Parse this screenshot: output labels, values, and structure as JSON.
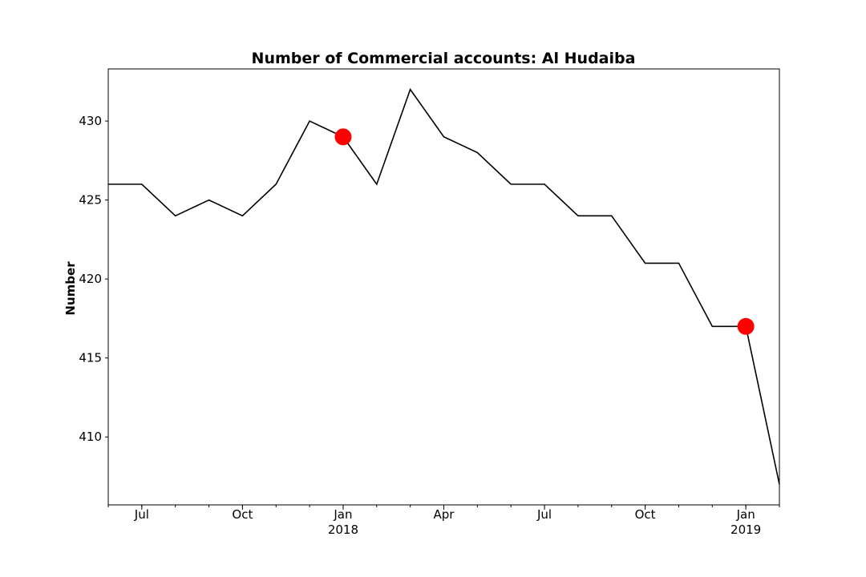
{
  "chart_data": {
    "type": "line",
    "title": "Number of Commercial accounts: Al Hudaiba",
    "xlabel": "",
    "ylabel": "Number",
    "x": [
      "2017-06",
      "2017-07",
      "2017-08",
      "2017-09",
      "2017-10",
      "2017-11",
      "2017-12",
      "2018-01",
      "2018-02",
      "2018-03",
      "2018-04",
      "2018-05",
      "2018-06",
      "2018-07",
      "2018-08",
      "2018-09",
      "2018-10",
      "2018-11",
      "2018-12",
      "2019-01",
      "2019-02"
    ],
    "series": [
      {
        "values": [
          426,
          426,
          424,
          425,
          424,
          426,
          430,
          429,
          426,
          432,
          429,
          428,
          426,
          426,
          424,
          424,
          421,
          421,
          417,
          417,
          407
        ],
        "color": "#000000"
      }
    ],
    "highlighted_points": [
      {
        "x": "2018-01",
        "y": 429
      },
      {
        "x": "2019-01",
        "y": 417
      }
    ],
    "highlight_color": "#ff0000",
    "xlim": [
      "2017-06",
      "2019-02"
    ],
    "ylim": [
      405.7,
      433.3
    ],
    "yticks": [
      410,
      415,
      420,
      425,
      430
    ],
    "xticks": [
      {
        "x": "2017-07",
        "label": "Jul",
        "sublabel": ""
      },
      {
        "x": "2017-10",
        "label": "Oct",
        "sublabel": ""
      },
      {
        "x": "2018-01",
        "label": "Jan",
        "sublabel": "2018"
      },
      {
        "x": "2018-04",
        "label": "Apr",
        "sublabel": ""
      },
      {
        "x": "2018-07",
        "label": "Jul",
        "sublabel": ""
      },
      {
        "x": "2018-10",
        "label": "Oct",
        "sublabel": ""
      },
      {
        "x": "2019-01",
        "label": "Jan",
        "sublabel": "2019"
      }
    ],
    "grid": false,
    "legend": "none"
  }
}
